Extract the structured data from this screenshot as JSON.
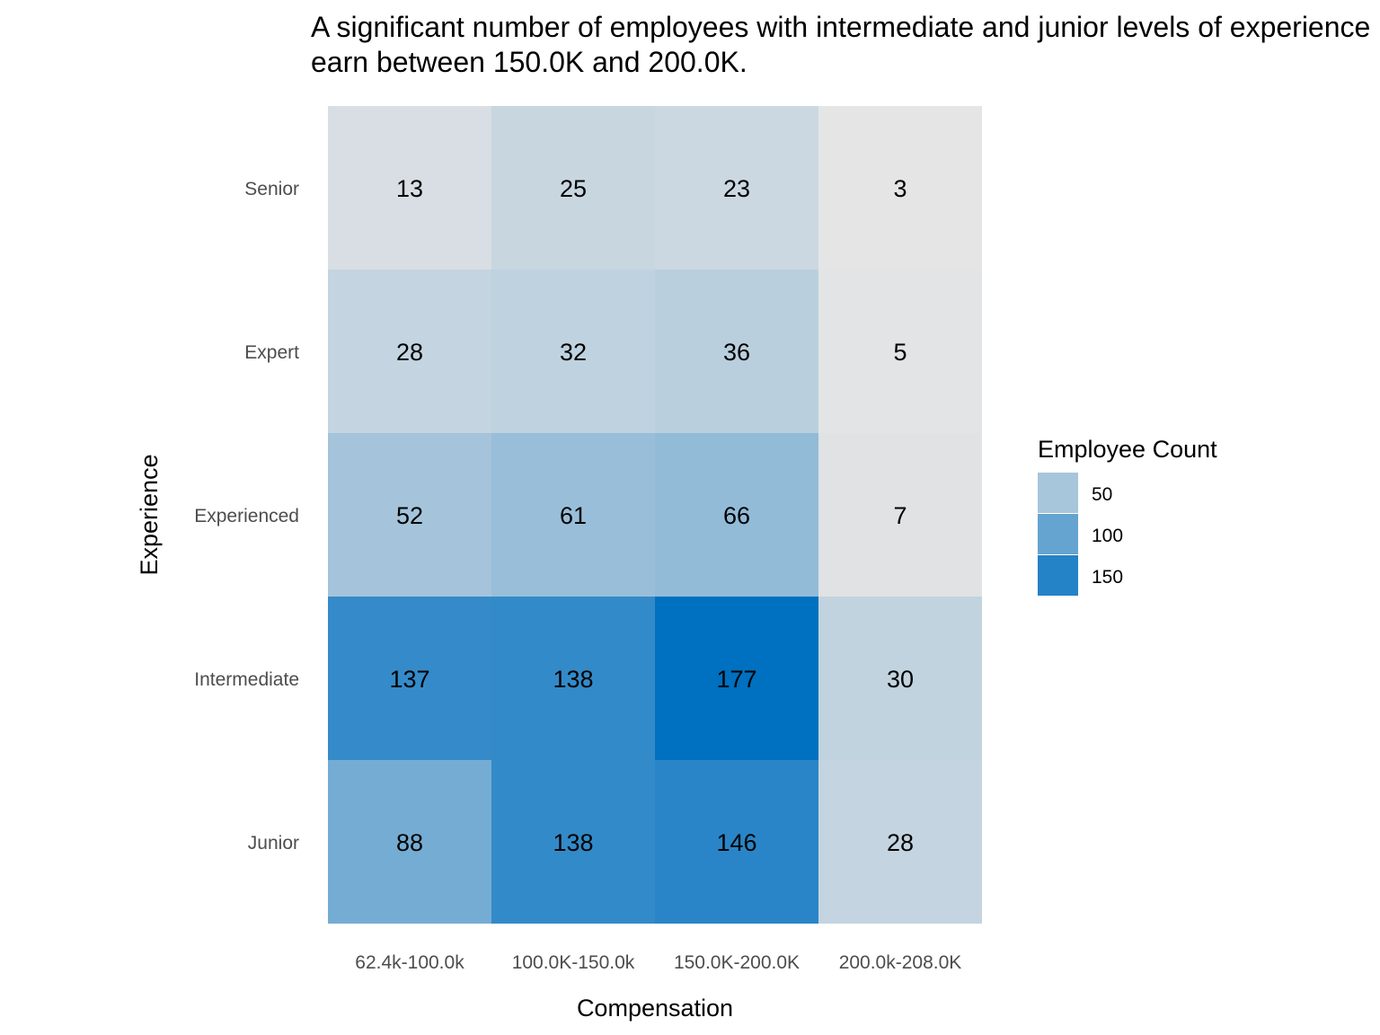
{
  "chart_data": {
    "type": "heatmap",
    "title": "A significant number of employees with intermediate and junior levels of experience earn between 150.0K and 200.0K.",
    "title_lines": [
      "A significant number of employees with intermediate and junior levels of experience",
      "earn between 150.0K and 200.0K."
    ],
    "xlabel": "Compensation",
    "ylabel": "Experience",
    "x_categories": [
      "62.4k-100.0k",
      "100.0K-150.0k",
      "150.0K-200.0K",
      "200.0k-208.0K"
    ],
    "y_categories": [
      "Senior",
      "Expert",
      "Experienced",
      "Intermediate",
      "Junior"
    ],
    "values": [
      [
        13,
        25,
        23,
        3
      ],
      [
        28,
        32,
        36,
        5
      ],
      [
        52,
        61,
        66,
        7
      ],
      [
        137,
        138,
        177,
        30
      ],
      [
        88,
        138,
        146,
        28
      ]
    ],
    "legend": {
      "title": "Employee Count",
      "breaks": [
        50,
        100,
        150
      ],
      "placement": "right"
    },
    "color_scale": {
      "low": "#e5e5e5",
      "high": "#0070c0",
      "min": 3,
      "max": 177
    },
    "grid": false
  }
}
